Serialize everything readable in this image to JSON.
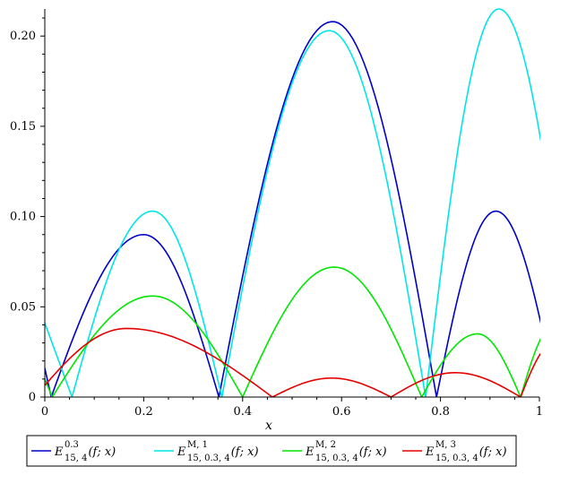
{
  "chart_data": {
    "type": "line",
    "xlabel": "x",
    "ylabel": "",
    "xlim": [
      0,
      1
    ],
    "ylim": [
      0,
      0.215
    ],
    "x_ticks": [
      0,
      0.2,
      0.4,
      0.6,
      0.8,
      1
    ],
    "x_tick_labels": [
      "0",
      "0.2",
      "0.4",
      "0.6",
      "0.8",
      "1"
    ],
    "y_ticks": [
      0,
      0.05,
      0.1,
      0.15,
      0.2
    ],
    "y_tick_labels": [
      "0",
      "0.05",
      "0.10",
      "0.15",
      "0.20"
    ],
    "grid": false,
    "legend_position": "bottom",
    "series": [
      {
        "legend_main": "E",
        "legend_sup": "0.3",
        "legend_sub": "15, 4",
        "legend_args": "(f; x)",
        "color": "#0000c8",
        "arches": [
          {
            "x0": 0.013,
            "x1": 0.352,
            "peak_x": 0.2,
            "peak_y": 0.09
          },
          {
            "x0": 0.352,
            "x1": 0.792,
            "peak_x": 0.582,
            "peak_y": 0.208
          },
          {
            "x0": 0.792,
            "x1": 1.035,
            "peak_x": 0.912,
            "peak_y": 0.103
          }
        ],
        "lead_in": {
          "x0": 0,
          "y0": 0.016,
          "x1": 0.013
        }
      },
      {
        "legend_main": "E",
        "legend_sup": "M, 1",
        "legend_sub": "15, 0.3, 4",
        "legend_args": "(f; x)",
        "color": "#00e6e6",
        "arches": [
          {
            "x0": 0.055,
            "x1": 0.358,
            "peak_x": 0.218,
            "peak_y": 0.103
          },
          {
            "x0": 0.358,
            "x1": 0.77,
            "peak_x": 0.575,
            "peak_y": 0.203
          },
          {
            "x0": 0.77,
            "x1": 1.075,
            "peak_x": 0.918,
            "peak_y": 0.215
          }
        ],
        "lead_in": {
          "x0": 0,
          "y0": 0.041,
          "x1": 0.055
        }
      },
      {
        "legend_main": "E",
        "legend_sup": "M, 2",
        "legend_sub": "15, 0.3, 4",
        "legend_args": "(f; x)",
        "color": "#00e600",
        "arches": [
          {
            "x0": 0.015,
            "x1": 0.4,
            "peak_x": 0.218,
            "peak_y": 0.056
          },
          {
            "x0": 0.4,
            "x1": 0.762,
            "peak_x": 0.585,
            "peak_y": 0.072
          },
          {
            "x0": 0.762,
            "x1": 0.962,
            "peak_x": 0.875,
            "peak_y": 0.035
          },
          {
            "x0": 0.962,
            "x1": 1.06,
            "peak_x": 1.03,
            "peak_y": 0.04
          }
        ],
        "lead_in": {
          "x0": 0,
          "y0": 0.01,
          "x1": 0.015
        }
      },
      {
        "legend_main": "E",
        "legend_sup": "M, 3",
        "legend_sub": "15, 0.3, 4",
        "legend_args": "(f; x)",
        "color": "#e60000",
        "arches": [
          {
            "x0": -0.02,
            "x1": 0.46,
            "peak_x": 0.165,
            "peak_y": 0.038
          },
          {
            "x0": 0.46,
            "x1": 0.7,
            "peak_x": 0.58,
            "peak_y": 0.0105
          },
          {
            "x0": 0.7,
            "x1": 0.962,
            "peak_x": 0.83,
            "peak_y": 0.0135
          },
          {
            "x0": 0.962,
            "x1": 1.08,
            "peak_x": 1.03,
            "peak_y": 0.03
          }
        ],
        "lead_in": null
      }
    ]
  }
}
